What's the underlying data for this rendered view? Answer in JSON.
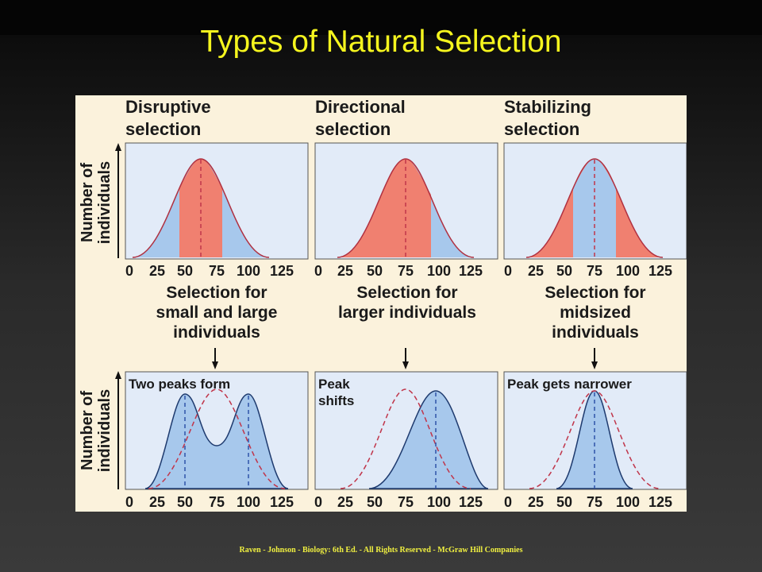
{
  "slide": {
    "title": "Types of Natural Selection",
    "footer": "Raven - Johnson - Biology: 6th Ed.  - All Rights Reserved - McGraw Hill Companies"
  },
  "figure": {
    "y_axis_label": [
      "Number of",
      "individuals"
    ],
    "x_ticks": [
      "0",
      "25",
      "50",
      "75",
      "100",
      "125"
    ],
    "panels": [
      {
        "title": [
          "Disruptive",
          "selection"
        ],
        "caption": [
          "Selection for",
          "small and large",
          "individuals"
        ],
        "result": [
          "Two peaks form"
        ],
        "selected_against": [
          50,
          100
        ],
        "peaks": [
          50,
          100
        ]
      },
      {
        "title": [
          "Directional",
          "selection"
        ],
        "caption": [
          "Selection for",
          "larger individuals"
        ],
        "result": [
          "Peak",
          "shifts"
        ],
        "selected_against": [
          0,
          100
        ],
        "peaks": [
          100
        ]
      },
      {
        "title": [
          "Stabilizing",
          "selection"
        ],
        "caption": [
          "Selection for",
          "midsized",
          "individuals"
        ],
        "result": [
          "Peak gets narrower"
        ],
        "selected_against_outside": [
          50,
          100
        ],
        "peaks": [
          75
        ]
      }
    ],
    "colors": {
      "box_fill": "#e2ebf8",
      "blue_fill": "#a7c8ec",
      "red_fill": "#f08070",
      "curve": "#b03040",
      "dashed_original": "#c0354a",
      "dashed_peak": "#2f52a8",
      "arrow": "#111111",
      "label_text": "#1a1a1a"
    }
  }
}
